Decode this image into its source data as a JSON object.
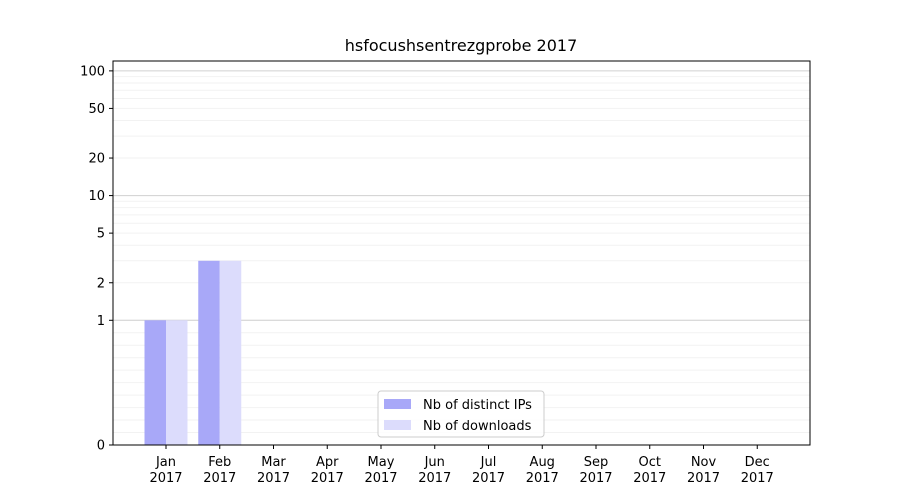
{
  "chart_data": {
    "type": "bar",
    "title": "hsfocushsentrezgprobe 2017",
    "xlabel": "",
    "ylabel": "",
    "yscale": "symlog",
    "ylim": [
      0,
      120
    ],
    "categories": [
      "Jan\n2017",
      "Feb\n2017",
      "Mar\n2017",
      "Apr\n2017",
      "May\n2017",
      "Jun\n2017",
      "Jul\n2017",
      "Aug\n2017",
      "Sep\n2017",
      "Oct\n2017",
      "Nov\n2017",
      "Dec\n2017"
    ],
    "y_ticks": [
      0,
      1,
      2,
      5,
      10,
      20,
      50,
      100
    ],
    "y_tick_labels": [
      "0",
      "1",
      "2",
      "5",
      "10",
      "20",
      "50",
      "100"
    ],
    "grid": true,
    "legend_position": "bottom-center",
    "series": [
      {
        "name": "Nb of distinct IPs",
        "color": "#a8a8f8",
        "values": [
          1,
          3,
          0,
          0,
          0,
          0,
          0,
          0,
          0,
          0,
          0,
          0
        ]
      },
      {
        "name": "Nb of downloads",
        "color": "#dcdcfc",
        "values": [
          1,
          3,
          0,
          0,
          0,
          0,
          0,
          0,
          0,
          0,
          0,
          0
        ]
      }
    ]
  }
}
